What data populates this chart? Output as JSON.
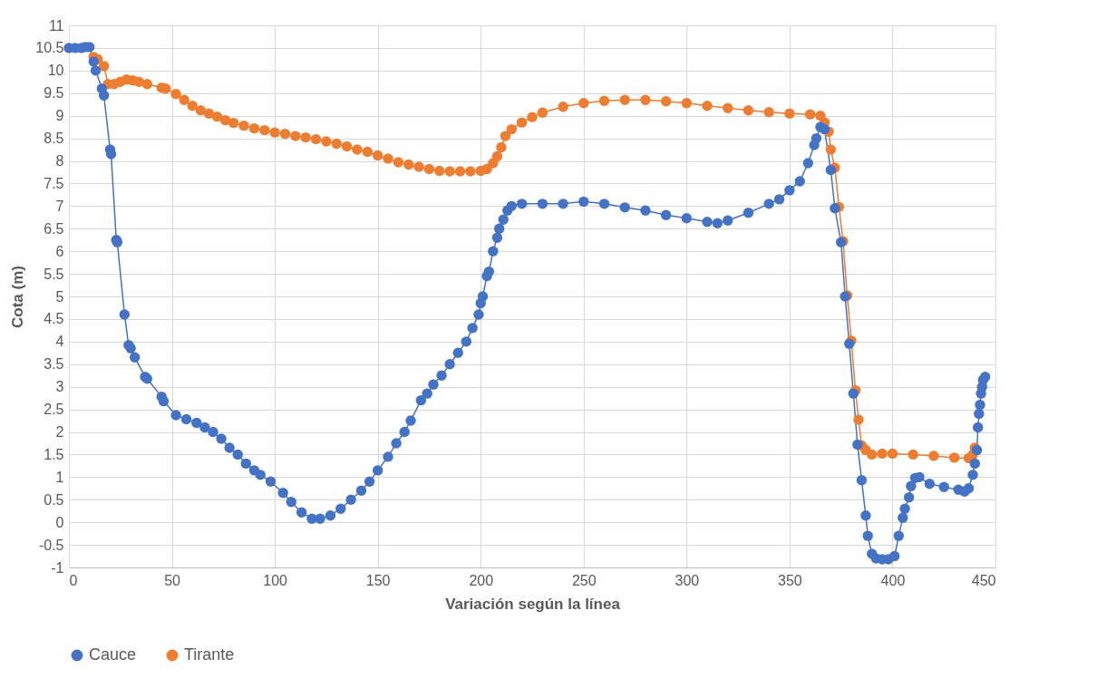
{
  "chart_data": {
    "type": "line",
    "xlabel": "Variación según la línea",
    "ylabel": "Cota (m)",
    "xlim": [
      0,
      450
    ],
    "xticks": [
      0,
      50,
      100,
      150,
      200,
      250,
      300,
      350,
      400,
      450
    ],
    "ylim": [
      -1,
      11
    ],
    "yticks": [
      -1,
      -0.5,
      0,
      0.5,
      1,
      1.5,
      2,
      2.5,
      3,
      3.5,
      4,
      4.5,
      5,
      5.5,
      6,
      6.5,
      7,
      7.5,
      8,
      8.5,
      9,
      9.5,
      10,
      10.5,
      11
    ],
    "grid": true,
    "legend": "bottom",
    "marker": "circle",
    "series": [
      {
        "name": "Cauce",
        "color": "#4472c4",
        "x": [
          0,
          3,
          6,
          8,
          10,
          12,
          13,
          16,
          17,
          20,
          20.5,
          23,
          23.5,
          27,
          29,
          30,
          32,
          37,
          38,
          45,
          46,
          52,
          57,
          62,
          66,
          70,
          74,
          78,
          82,
          86,
          90,
          93,
          98,
          104,
          108,
          113,
          118,
          122,
          127,
          132,
          137,
          142,
          146,
          150,
          155,
          159,
          163,
          166,
          171,
          174,
          177,
          181,
          185,
          189,
          193,
          196,
          199,
          200,
          201,
          203,
          204,
          206,
          208,
          209,
          211,
          213,
          215,
          220,
          230,
          240,
          250,
          260,
          270,
          280,
          290,
          300,
          310,
          315,
          320,
          330,
          340,
          345,
          350,
          355,
          359,
          362,
          363,
          365,
          367,
          370,
          372,
          375,
          377,
          379,
          381,
          383,
          385,
          387,
          388,
          390,
          392,
          395,
          398,
          401,
          403,
          405,
          406,
          408,
          409,
          411,
          413,
          418,
          425,
          432,
          435,
          437,
          439,
          440,
          441,
          441.5,
          442,
          442.5,
          443,
          443.5,
          444,
          445
        ],
        "values": [
          10.5,
          10.5,
          10.5,
          10.52,
          10.52,
          10.2,
          10.0,
          9.6,
          9.45,
          8.25,
          8.15,
          6.25,
          6.2,
          4.6,
          3.92,
          3.85,
          3.65,
          3.22,
          3.18,
          2.78,
          2.68,
          2.37,
          2.28,
          2.2,
          2.1,
          2.0,
          1.85,
          1.65,
          1.5,
          1.3,
          1.15,
          1.05,
          0.9,
          0.65,
          0.45,
          0.22,
          0.08,
          0.08,
          0.15,
          0.3,
          0.5,
          0.7,
          0.9,
          1.15,
          1.45,
          1.75,
          2.0,
          2.25,
          2.7,
          2.85,
          3.05,
          3.25,
          3.5,
          3.75,
          4.0,
          4.3,
          4.6,
          4.85,
          5.0,
          5.45,
          5.55,
          6.0,
          6.3,
          6.5,
          6.7,
          6.9,
          7.0,
          7.05,
          7.05,
          7.05,
          7.1,
          7.05,
          6.97,
          6.9,
          6.8,
          6.73,
          6.65,
          6.62,
          6.68,
          6.85,
          7.05,
          7.15,
          7.35,
          7.55,
          7.95,
          8.35,
          8.5,
          8.75,
          8.7,
          7.8,
          6.95,
          6.2,
          5.0,
          3.95,
          2.85,
          1.72,
          0.93,
          0.15,
          -0.3,
          -0.7,
          -0.8,
          -0.82,
          -0.82,
          -0.75,
          -0.3,
          0.1,
          0.3,
          0.55,
          0.8,
          0.98,
          1.0,
          0.85,
          0.78,
          0.72,
          0.68,
          0.75,
          1.05,
          1.3,
          1.6,
          2.1,
          2.4,
          2.6,
          2.85,
          3.0,
          3.15,
          3.22
        ]
      },
      {
        "name": "Tirante",
        "color": "#ed7d31",
        "x": [
          12,
          14,
          17,
          19,
          22,
          25,
          28,
          31,
          34,
          38,
          45,
          47,
          52,
          56,
          60,
          64,
          68,
          72,
          76,
          80,
          85,
          90,
          95,
          100,
          105,
          110,
          115,
          120,
          125,
          130,
          135,
          140,
          145,
          150,
          155,
          160,
          165,
          170,
          175,
          180,
          185,
          190,
          195,
          200,
          203,
          206,
          208,
          210,
          212,
          215,
          220,
          225,
          230,
          240,
          250,
          260,
          270,
          280,
          290,
          300,
          310,
          320,
          330,
          340,
          350,
          360,
          365,
          367,
          369,
          370,
          372,
          374,
          376,
          378,
          380,
          382,
          383.5,
          385,
          387,
          390,
          395,
          400,
          410,
          420,
          430,
          437,
          439,
          440
        ],
        "values": [
          10.3,
          10.25,
          10.1,
          9.7,
          9.7,
          9.75,
          9.8,
          9.78,
          9.75,
          9.7,
          9.62,
          9.6,
          9.48,
          9.35,
          9.22,
          9.12,
          9.05,
          8.98,
          8.9,
          8.84,
          8.78,
          8.72,
          8.68,
          8.63,
          8.6,
          8.55,
          8.52,
          8.48,
          8.43,
          8.38,
          8.32,
          8.25,
          8.2,
          8.12,
          8.05,
          7.97,
          7.92,
          7.87,
          7.82,
          7.78,
          7.77,
          7.77,
          7.77,
          7.78,
          7.82,
          7.95,
          8.1,
          8.3,
          8.55,
          8.7,
          8.85,
          8.97,
          9.07,
          9.2,
          9.28,
          9.33,
          9.35,
          9.35,
          9.32,
          9.28,
          9.22,
          9.17,
          9.12,
          9.08,
          9.05,
          9.03,
          9.0,
          8.85,
          8.65,
          8.25,
          7.85,
          6.98,
          6.22,
          5.02,
          4.02,
          2.92,
          2.27,
          1.7,
          1.6,
          1.5,
          1.52,
          1.52,
          1.5,
          1.47,
          1.43,
          1.42,
          1.5,
          1.65
        ]
      }
    ]
  }
}
